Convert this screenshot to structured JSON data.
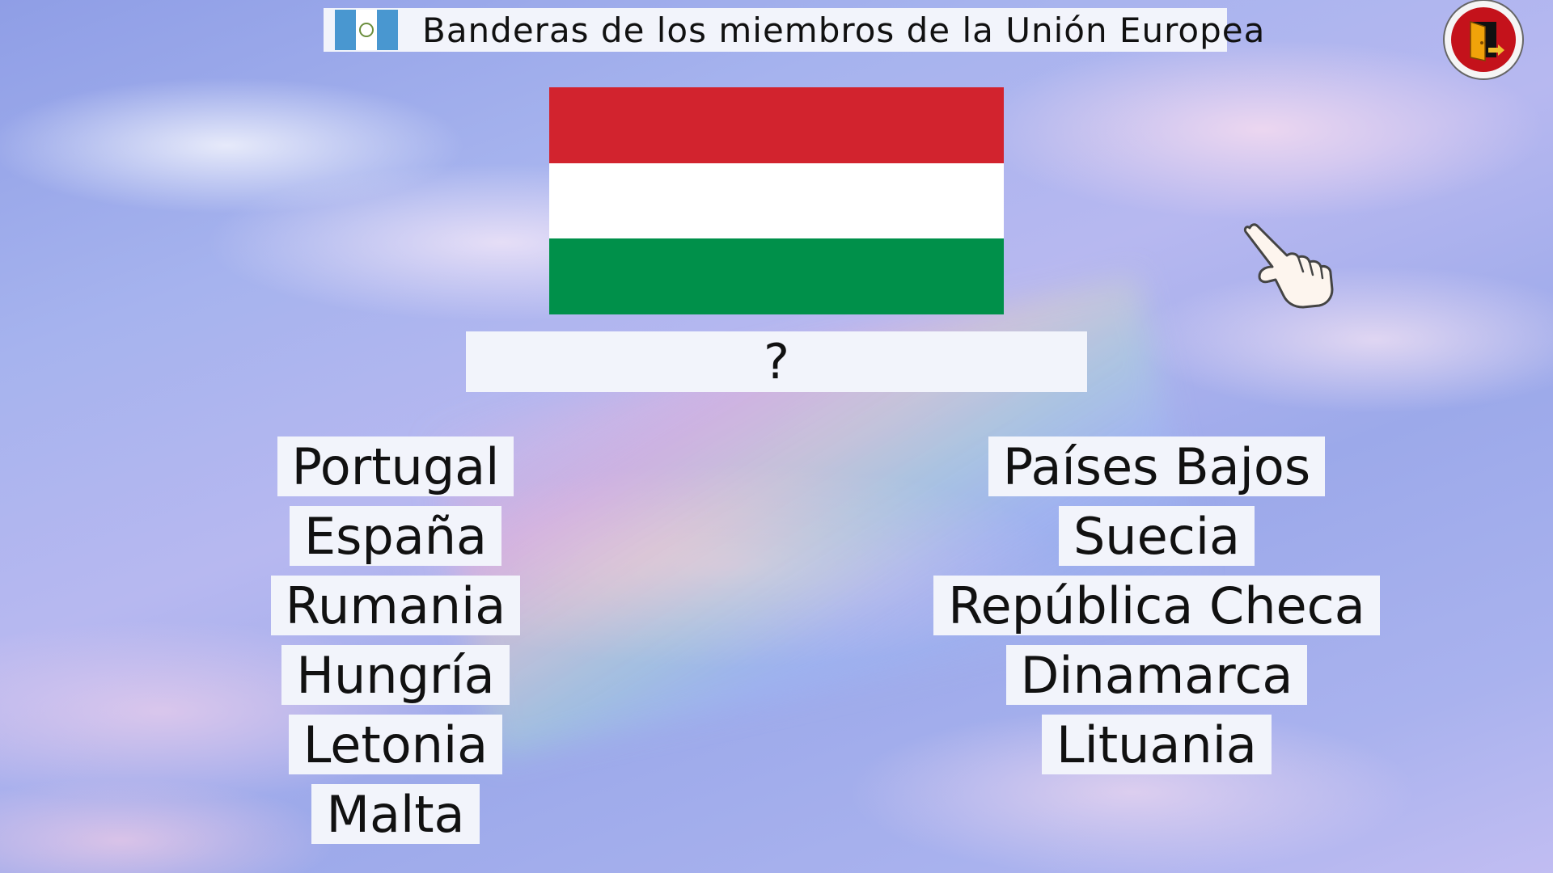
{
  "header": {
    "title": "Banderas de los miembros de la Unión Europea",
    "title_flag_colors": [
      "#4997d0",
      "#ffffff",
      "#4997d0"
    ]
  },
  "exit_button": {
    "icon": "exit-door-icon",
    "colors": {
      "ring": "#c4121b",
      "door": "#f0a30a"
    }
  },
  "question": {
    "flag_colors": [
      "#d2232e",
      "#ffffff",
      "#00904a"
    ],
    "answer": "?"
  },
  "options": {
    "left": [
      "Portugal",
      "España",
      "Rumania",
      "Hungría",
      "Letonia",
      "Malta"
    ],
    "right": [
      "Países Bajos",
      "Suecia",
      "República Checa",
      "Dinamarca",
      "Lituania"
    ]
  },
  "hint": {
    "icon": "pointing-hand-icon"
  }
}
